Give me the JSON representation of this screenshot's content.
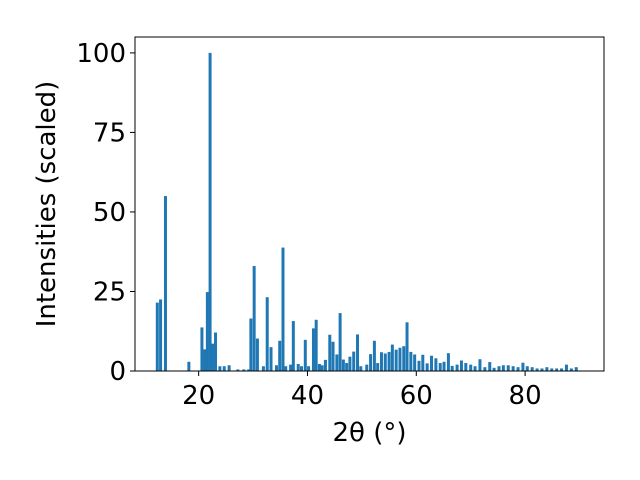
{
  "chart_data": {
    "type": "bar",
    "xlabel": "2θ (°)",
    "ylabel": "Intensities (scaled)",
    "xlim": [
      8.3,
      94.5
    ],
    "ylim": [
      0,
      105
    ],
    "xticks": [
      20,
      40,
      60,
      80
    ],
    "yticks": [
      0,
      25,
      50,
      75,
      100
    ],
    "bar_color": "#1f77b4",
    "grid": false,
    "x": [
      12.4,
      13.0,
      13.9,
      18.2,
      20.6,
      21.1,
      21.6,
      22.1,
      22.6,
      23.1,
      23.9,
      24.7,
      25.6,
      27.2,
      28.3,
      29.2,
      29.6,
      30.2,
      30.8,
      31.9,
      32.6,
      33.3,
      34.3,
      34.9,
      35.5,
      36.0,
      36.9,
      37.4,
      38.3,
      38.9,
      39.6,
      40.2,
      41.1,
      41.6,
      42.2,
      42.7,
      43.3,
      44.1,
      44.7,
      45.4,
      46.0,
      46.6,
      47.2,
      47.8,
      48.5,
      49.2,
      49.8,
      50.9,
      51.6,
      52.3,
      52.9,
      53.6,
      54.3,
      55.0,
      55.6,
      56.3,
      57.0,
      57.7,
      58.3,
      59.0,
      59.7,
      60.5,
      61.2,
      62.0,
      62.8,
      63.6,
      64.4,
      65.1,
      65.9,
      66.6,
      67.5,
      68.3,
      69.1,
      70.0,
      70.8,
      71.7,
      72.6,
      73.5,
      74.3,
      75.2,
      76.0,
      76.9,
      77.8,
      78.7,
      79.6,
      80.4,
      81.3,
      82.2,
      83.1,
      84.0,
      84.9,
      85.8,
      86.7,
      87.6,
      88.5,
      89.4
    ],
    "values": [
      21.5,
      22.5,
      55,
      2.9,
      13.7,
      6.8,
      24.8,
      100,
      8.6,
      12.1,
      1.5,
      1.5,
      1.8,
      0.5,
      0.5,
      0.5,
      16.5,
      33,
      10.2,
      1.5,
      23.2,
      7.5,
      1.8,
      9.5,
      38.8,
      1.5,
      2.0,
      15.7,
      2.2,
      1.5,
      9.8,
      1.5,
      13.4,
      16.1,
      2.2,
      1.8,
      3.5,
      11.4,
      9.2,
      5.2,
      18.2,
      3.6,
      2.5,
      4.5,
      6.1,
      11.5,
      1.5,
      2.0,
      5.3,
      9.5,
      2.5,
      5.9,
      5.5,
      6.0,
      8.3,
      6.7,
      7.3,
      7.8,
      15.3,
      6.0,
      5.2,
      3.2,
      5.1,
      2.4,
      4.8,
      4.0,
      2.5,
      2.9,
      5.6,
      1.6,
      2.0,
      3.3,
      2.5,
      2.0,
      1.5,
      3.7,
      1.2,
      2.8,
      1.0,
      1.5,
      1.8,
      1.8,
      1.5,
      1.2,
      2.6,
      1.5,
      1.2,
      0.8,
      0.8,
      1.2,
      0.8,
      0.8,
      0.8,
      2.0,
      0.8,
      1.2
    ]
  }
}
